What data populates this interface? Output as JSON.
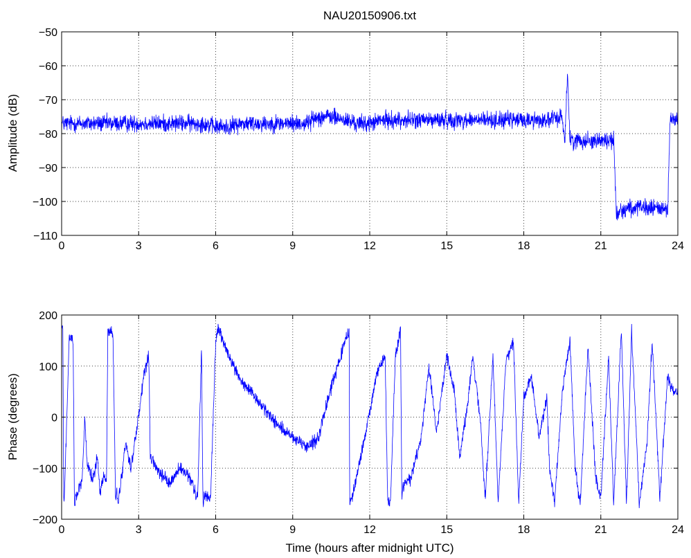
{
  "chart_data": [
    {
      "type": "line",
      "title": "NAU20150906.txt",
      "xlabel": "",
      "ylabel": "Amplitude (dB)",
      "xlim": [
        0,
        24
      ],
      "ylim": [
        -110,
        -50
      ],
      "xticks": [
        0,
        3,
        6,
        9,
        12,
        15,
        18,
        21,
        24
      ],
      "yticks": [
        -50,
        -60,
        -70,
        -80,
        -90,
        -100,
        -110
      ],
      "yticklabels": [
        "−50",
        "−60",
        "−70",
        "−80",
        "−90",
        "−100",
        "−110"
      ],
      "grid": true,
      "series": [
        {
          "color": "#0000ff",
          "x": [
            0,
            0.5,
            1,
            1.5,
            2,
            2.5,
            3,
            3.5,
            4,
            4.5,
            5,
            5.5,
            6,
            6.5,
            7,
            7.5,
            8,
            8.5,
            9,
            9.5,
            10,
            10.5,
            11,
            11.5,
            12,
            12.5,
            13,
            13.5,
            14,
            14.5,
            15,
            15.5,
            16,
            16.5,
            17,
            17.5,
            18,
            18.5,
            19,
            19.5,
            19.6,
            19.7,
            19.8,
            20,
            20.5,
            21,
            21.5,
            21.6,
            21.7,
            22,
            22.5,
            23,
            23.5,
            23.6,
            23.7,
            24
          ],
          "y": [
            -77,
            -77,
            -77,
            -77,
            -77,
            -77,
            -77,
            -77,
            -77,
            -77,
            -77,
            -77,
            -78,
            -78,
            -77,
            -77,
            -77,
            -77,
            -77,
            -77,
            -75,
            -75,
            -76,
            -77,
            -77,
            -76,
            -76,
            -76,
            -76,
            -76,
            -76,
            -76,
            -76,
            -76,
            -76,
            -76,
            -76,
            -76,
            -76,
            -75,
            -82,
            -62,
            -82,
            -82,
            -82,
            -82,
            -82,
            -103,
            -103,
            -102,
            -102,
            -102,
            -102,
            -102,
            -76,
            -76
          ],
          "noise": 2.5
        }
      ]
    },
    {
      "type": "line",
      "title": "",
      "xlabel": "Time (hours after midnight UTC)",
      "ylabel": "Phase (degrees)",
      "xlim": [
        0,
        24
      ],
      "ylim": [
        -200,
        200
      ],
      "xticks": [
        0,
        3,
        6,
        9,
        12,
        15,
        18,
        21,
        24
      ],
      "yticks": [
        200,
        100,
        0,
        -100,
        -200
      ],
      "yticklabels": [
        "200",
        "100",
        "0",
        "−100",
        "−200"
      ],
      "grid": true,
      "series": [
        {
          "color": "#0000ff",
          "x": [
            0,
            0.05,
            0.08,
            0.1,
            0.3,
            0.45,
            0.5,
            0.55,
            0.8,
            0.9,
            1.0,
            1.2,
            1.4,
            1.5,
            1.6,
            1.75,
            1.8,
            1.85,
            2.0,
            2.1,
            2.15,
            2.2,
            2.5,
            2.7,
            3.0,
            3.2,
            3.4,
            3.45,
            3.6,
            3.8,
            4.2,
            4.6,
            5.0,
            5.3,
            5.45,
            5.5,
            5.52,
            5.55,
            5.8,
            6.0,
            6.05,
            6.1,
            6.5,
            7,
            7.5,
            8,
            8.5,
            9,
            9.5,
            10,
            10.5,
            11,
            11.2,
            11.22,
            11.3,
            11.6,
            12.0,
            12.3,
            12.6,
            12.7,
            12.8,
            13.0,
            13.2,
            13.25,
            13.3,
            13.6,
            14.0,
            14.3,
            14.6,
            15.0,
            15.3,
            15.5,
            15.8,
            16.0,
            16.3,
            16.5,
            16.8,
            17.0,
            17.3,
            17.6,
            17.8,
            18.0,
            18.3,
            18.6,
            18.9,
            19.0,
            19.2,
            19.5,
            19.8,
            20.0,
            20.2,
            20.5,
            20.8,
            21.0,
            21.3,
            21.5,
            21.8,
            22.0,
            22.2,
            22.5,
            22.8,
            23.0,
            23.3,
            23.6,
            23.8,
            24
          ],
          "y": [
            175,
            170,
            -160,
            -170,
            160,
            150,
            -175,
            -160,
            -120,
            0,
            -100,
            -120,
            -80,
            -150,
            -120,
            -120,
            170,
            170,
            160,
            -160,
            -150,
            -170,
            -50,
            -100,
            0,
            80,
            120,
            -80,
            -90,
            -110,
            -130,
            -100,
            -120,
            -160,
            140,
            -160,
            -170,
            -150,
            -160,
            150,
            160,
            175,
            120,
            70,
            40,
            10,
            -20,
            -40,
            -60,
            -40,
            60,
            140,
            170,
            -170,
            -160,
            -90,
            10,
            90,
            120,
            -170,
            -170,
            120,
            170,
            -160,
            -130,
            -120,
            -40,
            100,
            -30,
            120,
            50,
            -80,
            20,
            120,
            0,
            -160,
            120,
            -170,
            110,
            150,
            -170,
            40,
            80,
            -40,
            40,
            -100,
            -170,
            50,
            150,
            -100,
            -170,
            140,
            -120,
            -160,
            120,
            -170,
            170,
            -170,
            170,
            -170,
            -50,
            150,
            -160,
            80,
            50,
            50
          ],
          "noise": 12
        }
      ]
    }
  ]
}
